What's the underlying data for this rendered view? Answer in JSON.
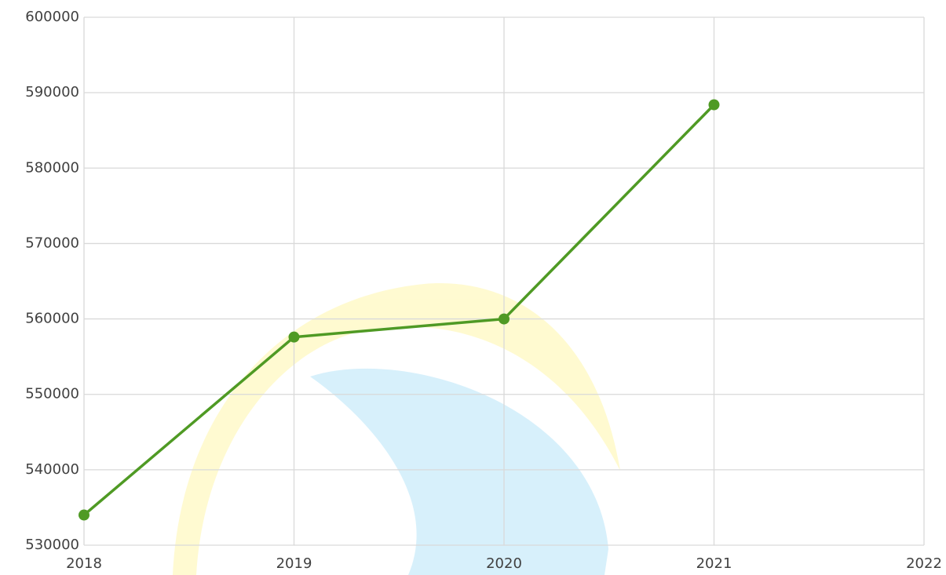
{
  "chart_data": {
    "type": "line",
    "x": [
      2018,
      2019,
      2020,
      2021
    ],
    "series": [
      {
        "color": "#4f9a24",
        "values": [
          534000,
          557600,
          560000,
          588400
        ]
      }
    ],
    "xlim": [
      2018,
      2022
    ],
    "xticks": [
      2018,
      2019,
      2020,
      2021,
      2022
    ],
    "ylim": [
      530000,
      600000
    ],
    "yticks": [
      530000,
      540000,
      550000,
      560000,
      570000,
      580000,
      590000,
      600000
    ],
    "grid": true
  }
}
